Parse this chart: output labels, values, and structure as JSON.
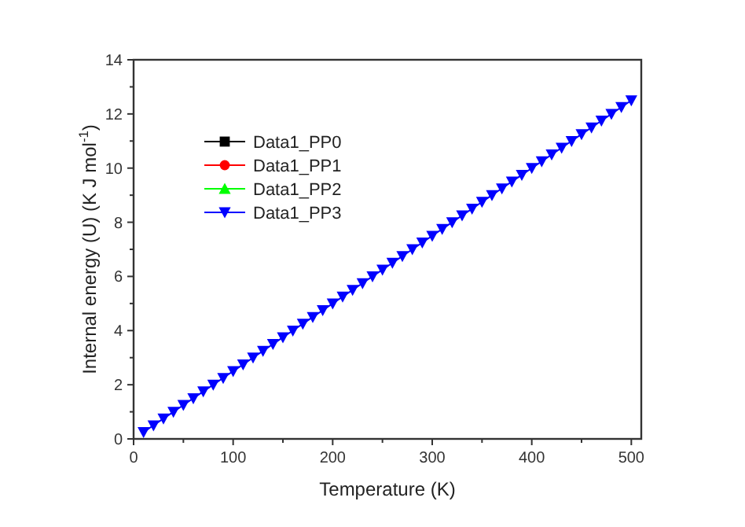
{
  "chart_data": {
    "type": "line",
    "xlabel": "Temperature (K)",
    "ylabel": "Internal energy  (U) (K J mol$^{-1}$)",
    "x": [
      10,
      20,
      30,
      40,
      50,
      60,
      70,
      80,
      90,
      100,
      110,
      120,
      130,
      140,
      150,
      160,
      170,
      180,
      190,
      200,
      210,
      220,
      230,
      240,
      250,
      260,
      270,
      280,
      290,
      300,
      310,
      320,
      330,
      340,
      350,
      360,
      370,
      380,
      390,
      400,
      410,
      420,
      430,
      440,
      450,
      460,
      470,
      480,
      490,
      500
    ],
    "series": [
      {
        "name": "Data1_PP0",
        "color": "#000000",
        "marker": "square",
        "values": [
          null,
          null,
          null,
          null,
          null,
          null,
          null,
          null,
          null,
          null,
          null,
          null,
          null,
          null,
          null,
          null,
          null,
          null,
          null,
          null,
          null,
          null,
          null,
          null,
          null,
          null,
          null,
          null,
          null,
          null,
          null,
          null,
          null,
          null,
          null,
          null,
          null,
          null,
          null,
          null,
          null,
          null,
          null,
          null,
          null,
          null,
          null,
          null,
          null,
          null
        ]
      },
      {
        "name": "Data1_PP1",
        "color": "#ff0000",
        "marker": "circle",
        "values": [
          null,
          null,
          null,
          null,
          null,
          null,
          null,
          null,
          null,
          null,
          null,
          null,
          null,
          null,
          null,
          null,
          null,
          null,
          null,
          null,
          null,
          null,
          null,
          null,
          null,
          null,
          null,
          null,
          null,
          null,
          null,
          null,
          null,
          null,
          null,
          null,
          null,
          null,
          null,
          null,
          null,
          null,
          null,
          null,
          null,
          null,
          null,
          null,
          null,
          null
        ]
      },
      {
        "name": "Data1_PP2",
        "color": "#00ff00",
        "marker": "triangle",
        "values": [
          null,
          null,
          null,
          null,
          null,
          null,
          null,
          null,
          null,
          null,
          null,
          null,
          null,
          null,
          null,
          null,
          null,
          null,
          null,
          null,
          null,
          null,
          null,
          null,
          null,
          null,
          null,
          null,
          null,
          null,
          null,
          null,
          null,
          null,
          null,
          null,
          null,
          null,
          null,
          null,
          null,
          null,
          null,
          null,
          null,
          null,
          null,
          null,
          null,
          null
        ]
      },
      {
        "name": "Data1_PP3",
        "color": "#0000ff",
        "marker": "triangle-down",
        "values": [
          0.25,
          0.5,
          0.75,
          1,
          1.25,
          1.5,
          1.75,
          2,
          2.25,
          2.5,
          2.75,
          3,
          3.25,
          3.5,
          3.75,
          4,
          4.25,
          4.5,
          4.75,
          5,
          5.25,
          5.5,
          5.75,
          6,
          6.25,
          6.5,
          6.75,
          7,
          7.25,
          7.5,
          7.75,
          8,
          8.25,
          8.5,
          8.75,
          9,
          9.25,
          9.5,
          9.75,
          10,
          10.25,
          10.5,
          10.75,
          11,
          11.25,
          11.5,
          11.75,
          12,
          12.25,
          12.5
        ]
      }
    ],
    "xlim": [
      0,
      510
    ],
    "xticks": [
      0,
      {
        "value": 50,
        "label": null
      },
      100,
      {
        "value": 150,
        "label": null
      },
      200,
      {
        "value": 250,
        "label": null
      },
      300,
      {
        "value": 350,
        "label": null
      },
      400,
      {
        "value": 450,
        "label": null
      },
      500
    ],
    "ylim": [
      0,
      14
    ],
    "yticks": [
      0,
      {
        "value": 1,
        "label": null
      },
      2,
      {
        "value": 3,
        "label": null
      },
      4,
      {
        "value": 5,
        "label": null
      },
      6,
      {
        "value": 7,
        "label": null
      },
      8,
      {
        "value": 9,
        "label": null
      },
      10,
      {
        "value": 11,
        "label": null
      },
      12,
      {
        "value": 13,
        "label": null
      },
      14
    ],
    "grid": false,
    "legend": "top left",
    "line_style": "solid"
  }
}
